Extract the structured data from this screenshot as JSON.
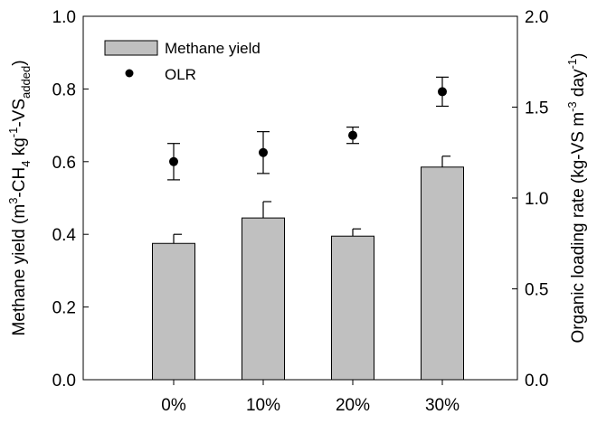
{
  "chart_data": {
    "type": "bar",
    "categories": [
      "0%",
      "10%",
      "20%",
      "30%"
    ],
    "series": [
      {
        "name": "Methane yield",
        "axis": "left",
        "kind": "bar",
        "values": [
          0.375,
          0.445,
          0.395,
          0.585
        ],
        "error": [
          0.025,
          0.045,
          0.02,
          0.03
        ]
      },
      {
        "name": "OLR",
        "axis": "right",
        "kind": "scatter",
        "values": [
          1.2,
          1.25,
          1.345,
          1.585
        ],
        "error": [
          0.1,
          0.115,
          0.045,
          0.08
        ]
      }
    ],
    "ylabel_left": {
      "main": "Methane yield (m",
      "sup1": "3",
      "mid1": "-CH",
      "sub1": "4",
      "mid2": " kg",
      "sup2": "-1",
      "mid3": "-VS",
      "sub2": "added",
      "end": ")"
    },
    "ylabel_right": {
      "main": "Organic loading rate (kg-VS m",
      "sup1": "-3",
      "mid1": " day",
      "sup2": "-1",
      "end": ")"
    },
    "ylim_left": [
      0,
      1.0
    ],
    "ylim_right": [
      0,
      2.0
    ],
    "yticks_left": [
      "0.0",
      "0.2",
      "0.4",
      "0.6",
      "0.8",
      "1.0"
    ],
    "yticks_right": [
      "0.0",
      "0.5",
      "1.0",
      "1.5",
      "2.0"
    ],
    "grid": false,
    "legend_position": "top-left",
    "colors": {
      "bar_fill": "#c0c0c0",
      "bar_stroke": "#000000",
      "marker": "#000000"
    }
  }
}
